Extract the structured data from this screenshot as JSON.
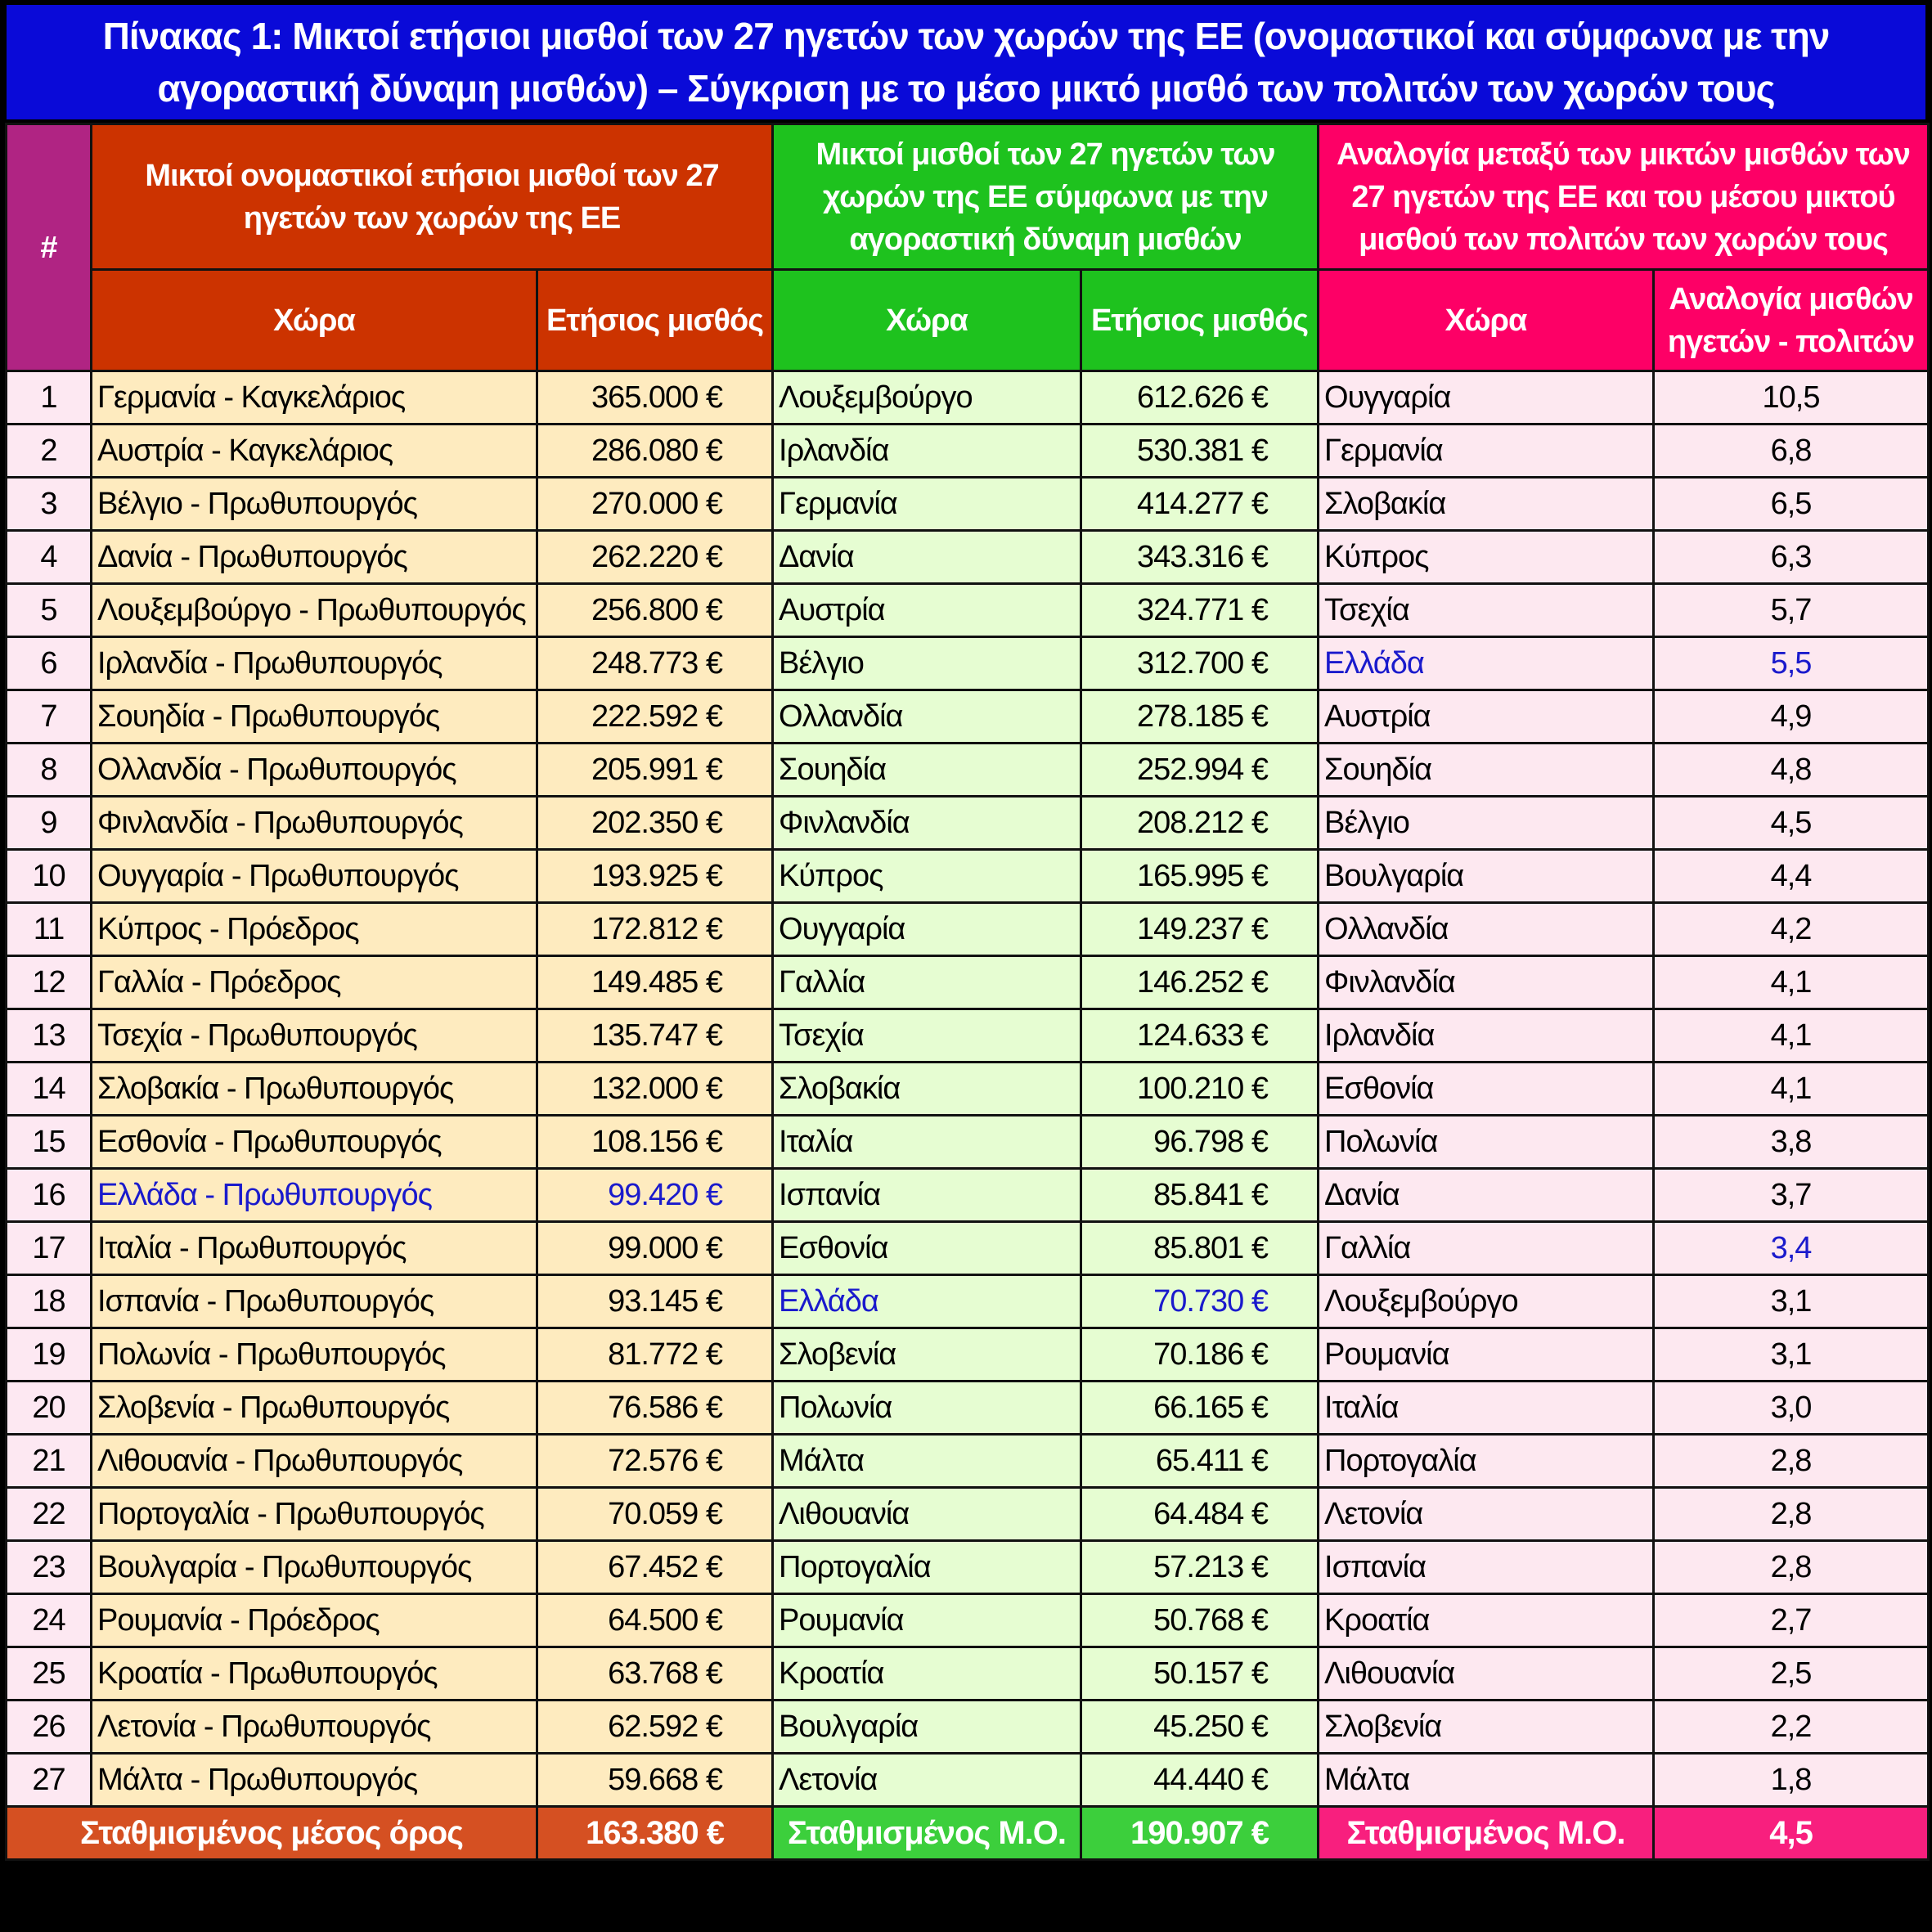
{
  "title": "Πίνακας 1: Μικτοί ετήσιοι μισθοί των 27 ηγετών των χωρών της ΕΕ (ονομαστικοί και σύμφωνα με την αγοραστική δύναμη μισθών) – Σύγκριση με το μέσο μικτό μισθό των πολιτών των χωρών τους",
  "colors": {
    "title_bg": "#0a0ad8",
    "group_a": "#cc3300",
    "group_b": "#1ec21e",
    "group_c": "#fd0066",
    "highlight": "#1a1acc"
  },
  "headers": {
    "num": "#",
    "group_a": "Μικτοί ονομαστικοί ετήσιοι μισθοί των 27 ηγετών των χωρών της ΕΕ",
    "group_b": "Μικτοί μισθοί των 27 ηγετών των χωρών της ΕΕ σύμφωνα με την αγοραστική δύναμη μισθών",
    "group_c": "Αναλογία μεταξύ των μικτών μισθών των 27 ηγετών της ΕΕ και του μέσου μικτού μισθού των πολιτών των χωρών τους",
    "country": "Χώρα",
    "salary": "Ετήσιος μισθός",
    "ratio": "Αναλογία μισθών ηγετών - πολιτών"
  },
  "rows": [
    {
      "n": "1",
      "a": "Γερμανία - Καγκελάριος",
      "as": "365.000 €",
      "b": "Λουξεμβούργο",
      "bs": "612.626 €",
      "c": "Ουγγαρία",
      "cr": "10,5"
    },
    {
      "n": "2",
      "a": "Αυστρία - Καγκελάριος",
      "as": "286.080 €",
      "b": "Ιρλανδία",
      "bs": "530.381 €",
      "c": "Γερμανία",
      "cr": "6,8"
    },
    {
      "n": "3",
      "a": "Βέλγιο - Πρωθυπουργός",
      "as": "270.000 €",
      "b": "Γερμανία",
      "bs": "414.277 €",
      "c": "Σλοβακία",
      "cr": "6,5"
    },
    {
      "n": "4",
      "a": "Δανία - Πρωθυπουργός",
      "as": "262.220 €",
      "b": "Δανία",
      "bs": "343.316 €",
      "c": "Κύπρος",
      "cr": "6,3"
    },
    {
      "n": "5",
      "a": "Λουξεμβούργο - Πρωθυπουργός",
      "as": "256.800 €",
      "b": "Αυστρία",
      "bs": "324.771 €",
      "c": "Τσεχία",
      "cr": "5,7"
    },
    {
      "n": "6",
      "a": "Ιρλανδία - Πρωθυπουργός",
      "as": "248.773 €",
      "b": "Βέλγιο",
      "bs": "312.700 €",
      "c": "Ελλάδα",
      "cr": "5,5",
      "hc": true,
      "hcr": true
    },
    {
      "n": "7",
      "a": "Σουηδία - Πρωθυπουργός",
      "as": "222.592 €",
      "b": "Ολλανδία",
      "bs": "278.185 €",
      "c": "Αυστρία",
      "cr": "4,9"
    },
    {
      "n": "8",
      "a": "Ολλανδία - Πρωθυπουργός",
      "as": "205.991 €",
      "b": "Σουηδία",
      "bs": "252.994 €",
      "c": "Σουηδία",
      "cr": "4,8"
    },
    {
      "n": "9",
      "a": "Φινλανδία - Πρωθυπουργός",
      "as": "202.350 €",
      "b": "Φινλανδία",
      "bs": "208.212 €",
      "c": "Βέλγιο",
      "cr": "4,5"
    },
    {
      "n": "10",
      "a": "Ουγγαρία - Πρωθυπουργός",
      "as": "193.925 €",
      "b": "Κύπρος",
      "bs": "165.995 €",
      "c": "Βουλγαρία",
      "cr": "4,4"
    },
    {
      "n": "11",
      "a": "Κύπρος - Πρόεδρος",
      "as": "172.812 €",
      "b": "Ουγγαρία",
      "bs": "149.237 €",
      "c": "Ολλανδία",
      "cr": "4,2"
    },
    {
      "n": "12",
      "a": "Γαλλία - Πρόεδρος",
      "as": "149.485 €",
      "b": "Γαλλία",
      "bs": "146.252 €",
      "c": "Φινλανδία",
      "cr": "4,1"
    },
    {
      "n": "13",
      "a": "Τσεχία - Πρωθυπουργός",
      "as": "135.747 €",
      "b": "Τσεχία",
      "bs": "124.633 €",
      "c": "Ιρλανδία",
      "cr": "4,1"
    },
    {
      "n": "14",
      "a": "Σλοβακία - Πρωθυπουργός",
      "as": "132.000 €",
      "b": "Σλοβακία",
      "bs": "100.210 €",
      "c": "Εσθονία",
      "cr": "4,1"
    },
    {
      "n": "15",
      "a": "Εσθονία - Πρωθυπουργός",
      "as": "108.156 €",
      "b": "Ιταλία",
      "bs": "96.798 €",
      "c": "Πολωνία",
      "cr": "3,8"
    },
    {
      "n": "16",
      "a": "Ελλάδα - Πρωθυπουργός",
      "as": "99.420 €",
      "b": "Ισπανία",
      "bs": "85.841 €",
      "c": "Δανία",
      "cr": "3,7",
      "ha": true,
      "has": true
    },
    {
      "n": "17",
      "a": "Ιταλία - Πρωθυπουργός",
      "as": "99.000 €",
      "b": "Εσθονία",
      "bs": "85.801 €",
      "c": "Γαλλία",
      "cr": "3,4",
      "hcr": true
    },
    {
      "n": "18",
      "a": "Ισπανία - Πρωθυπουργός",
      "as": "93.145 €",
      "b": "Ελλάδα",
      "bs": "70.730 €",
      "c": "Λουξεμβούργο",
      "cr": "3,1",
      "hb": true,
      "hbs": true
    },
    {
      "n": "19",
      "a": "Πολωνία - Πρωθυπουργός",
      "as": "81.772 €",
      "b": "Σλοβενία",
      "bs": "70.186 €",
      "c": "Ρουμανία",
      "cr": "3,1"
    },
    {
      "n": "20",
      "a": "Σλοβενία - Πρωθυπουργός",
      "as": "76.586 €",
      "b": "Πολωνία",
      "bs": "66.165 €",
      "c": "Ιταλία",
      "cr": "3,0"
    },
    {
      "n": "21",
      "a": "Λιθουανία - Πρωθυπουργός",
      "as": "72.576 €",
      "b": "Μάλτα",
      "bs": "65.411 €",
      "c": "Πορτογαλία",
      "cr": "2,8"
    },
    {
      "n": "22",
      "a": "Πορτογαλία - Πρωθυπουργός",
      "as": "70.059 €",
      "b": "Λιθουανία",
      "bs": "64.484 €",
      "c": "Λετονία",
      "cr": "2,8"
    },
    {
      "n": "23",
      "a": "Βουλγαρία - Πρωθυπουργός",
      "as": "67.452 €",
      "b": "Πορτογαλία",
      "bs": "57.213 €",
      "c": "Ισπανία",
      "cr": "2,8"
    },
    {
      "n": "24",
      "a": "Ρουμανία - Πρόεδρος",
      "as": "64.500 €",
      "b": "Ρουμανία",
      "bs": "50.768 €",
      "c": "Κροατία",
      "cr": "2,7"
    },
    {
      "n": "25",
      "a": "Κροατία - Πρωθυπουργός",
      "as": "63.768 €",
      "b": "Κροατία",
      "bs": "50.157 €",
      "c": "Λιθουανία",
      "cr": "2,5"
    },
    {
      "n": "26",
      "a": "Λετονία - Πρωθυπουργός",
      "as": "62.592 €",
      "b": "Βουλγαρία",
      "bs": "45.250 €",
      "c": "Σλοβενία",
      "cr": "2,2"
    },
    {
      "n": "27",
      "a": "Μάλτα - Πρωθυπουργός",
      "as": "59.668 €",
      "b": "Λετονία",
      "bs": "44.440 €",
      "c": "Μάλτα",
      "cr": "1,8"
    }
  ],
  "footer": {
    "a_label": "Σταθμισμένος μέσος όρος",
    "a_value": "163.380 €",
    "b_label": "Σταθμισμένος Μ.Ο.",
    "b_value": "190.907 €",
    "c_label": "Σταθμισμένος Μ.Ο.",
    "c_value": "4,5"
  }
}
